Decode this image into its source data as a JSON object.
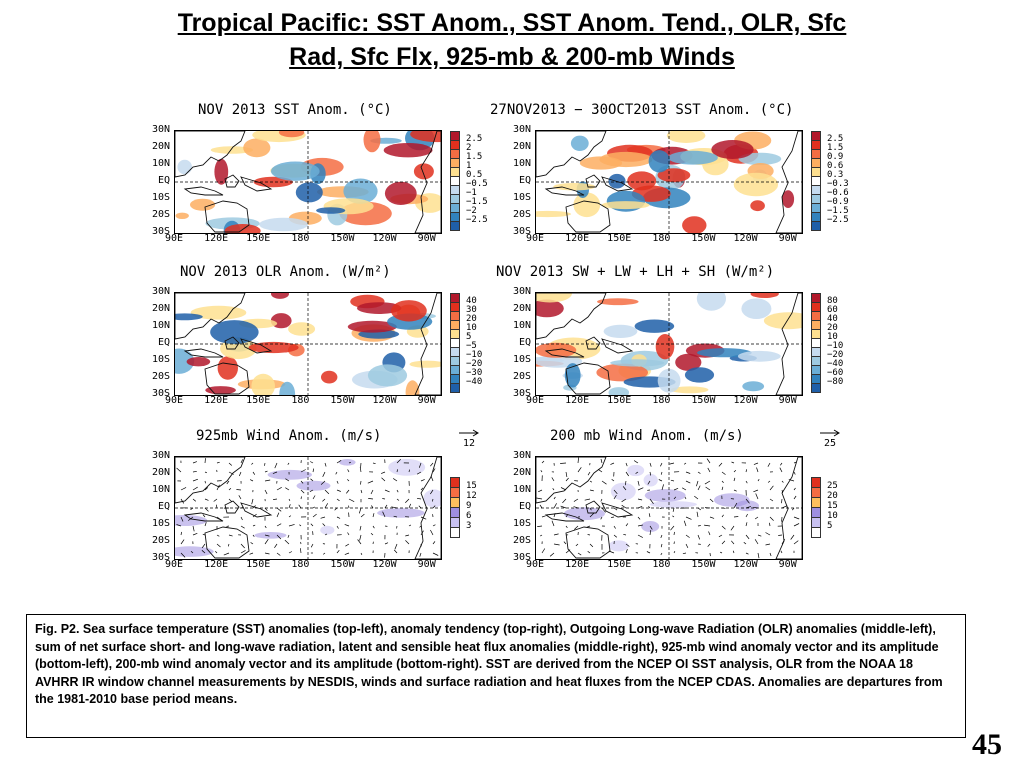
{
  "slide": {
    "title_line1": "Tropical Pacific: SST Anom., SST Anom. Tend., OLR, Sfc",
    "title_line2": "Rad, Sfc Flx, 925-mb & 200-mb Winds",
    "page_number": "45",
    "caption": "Fig. P2. Sea surface temperature (SST) anomalies (top-left), anomaly tendency (top-right), Outgoing Long-wave Radiation (OLR) anomalies (middle-left), sum of net surface short- and long-wave radiation, latent and sensible heat flux anomalies (middle-right), 925-mb wind anomaly vector and its amplitude (bottom-left), 200-mb wind anomaly vector and its amplitude  (bottom-right). SST are derived from the NCEP OI SST analysis, OLR from the NOAA 18 AVHRR IR window channel measurements by NESDIS, winds and surface radiation and heat fluxes from the NCEP CDAS. Anomalies are  departures from the 1981-2010 base period means."
  },
  "axes": {
    "lat_labels": [
      "30N",
      "20N",
      "10N",
      "EQ",
      "10S",
      "20S",
      "30S"
    ],
    "lon_labels": [
      "90E",
      "120E",
      "150E",
      "180",
      "150W",
      "120W",
      "90W"
    ]
  },
  "panels": [
    {
      "id": "sst",
      "title": "NOV 2013 SST Anom. (°C)",
      "colorbar_labels": [
        "2.5",
        "2",
        "1.5",
        "1",
        "0.5",
        "−0.5",
        "−1",
        "−1.5",
        "−2",
        "−2.5"
      ],
      "colorbar_colors": [
        "#b2182b",
        "#e0301e",
        "#f46d43",
        "#fdae61",
        "#fee090",
        "#ffffff",
        "#c6dbef",
        "#9ecae1",
        "#6baed6",
        "#3182bd",
        "#1f5fa8"
      ]
    },
    {
      "id": "sst-tend",
      "title": "27NOV2013 − 30OCT2013 SST Anom. (°C)",
      "colorbar_labels": [
        "2.5",
        "1.5",
        "0.9",
        "0.6",
        "0.3",
        "−0.3",
        "−0.6",
        "−0.9",
        "−1.5",
        "−2.5"
      ],
      "colorbar_colors": [
        "#b2182b",
        "#e0301e",
        "#f46d43",
        "#fdae61",
        "#fee090",
        "#ffffff",
        "#c6dbef",
        "#9ecae1",
        "#6baed6",
        "#3182bd",
        "#1f5fa8"
      ]
    },
    {
      "id": "olr",
      "title": "NOV 2013 OLR Anom. (W/m²)",
      "colorbar_labels": [
        "40",
        "30",
        "20",
        "10",
        "5",
        "−5",
        "−10",
        "−20",
        "−30",
        "−40"
      ],
      "colorbar_colors": [
        "#b2182b",
        "#e0301e",
        "#f46d43",
        "#fdae61",
        "#fee090",
        "#ffffff",
        "#c6dbef",
        "#9ecae1",
        "#6baed6",
        "#3182bd",
        "#1f5fa8"
      ]
    },
    {
      "id": "sfc-flux",
      "title": "NOV 2013 SW + LW + LH + SH (W/m²)",
      "colorbar_labels": [
        "80",
        "60",
        "40",
        "20",
        "10",
        "−10",
        "−20",
        "−40",
        "−60",
        "−80"
      ],
      "colorbar_colors": [
        "#b2182b",
        "#e0301e",
        "#f46d43",
        "#fdae61",
        "#fee090",
        "#ffffff",
        "#c6dbef",
        "#9ecae1",
        "#6baed6",
        "#3182bd",
        "#1f5fa8"
      ]
    },
    {
      "id": "wind925",
      "title": "925mb Wind Anom. (m/s)",
      "ref_vector_label": "12",
      "colorbar_labels": [
        "15",
        "12",
        "9",
        "6",
        "3"
      ],
      "colorbar_colors": [
        "#e0301e",
        "#f46d43",
        "#fdc05e",
        "#9e8fe0",
        "#c9c2f2",
        "#ffffff"
      ]
    },
    {
      "id": "wind200",
      "title": "200 mb Wind Anom. (m/s)",
      "ref_vector_label": "25",
      "colorbar_labels": [
        "25",
        "20",
        "15",
        "10",
        "5"
      ],
      "colorbar_colors": [
        "#e0301e",
        "#f46d43",
        "#fdc05e",
        "#9e8fe0",
        "#c9c2f2",
        "#ffffff"
      ]
    }
  ]
}
